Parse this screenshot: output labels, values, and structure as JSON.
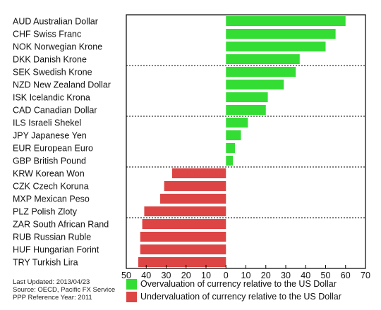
{
  "chart_data": {
    "type": "bar",
    "orientation": "horizontal",
    "categories": [
      "AUD Australian Dollar",
      "CHF Swiss Franc",
      "NOK Norwegian Krone",
      "DKK Danish Krone",
      "SEK Swedish Krone",
      "NZD New Zealand Dollar",
      "ISK Icelandic Krona",
      "CAD Canadian Dollar",
      "ILS Israeli Shekel",
      "JPY Japanese Yen",
      "EUR European Euro",
      "GBP British Pound",
      "KRW Korean Won",
      "CZK Czech Koruna",
      "MXP Mexican Peso",
      "PLZ Polish Zloty",
      "ZAR South African Rand",
      "RUB Russian Ruble",
      "HUF Hungarian Forint",
      "TRY Turkish Lira"
    ],
    "values": [
      60,
      55,
      50,
      37,
      35,
      29,
      21,
      20,
      11,
      7.5,
      4.5,
      3.5,
      -27,
      -31,
      -33,
      -41,
      -42,
      -43,
      -43,
      -44
    ],
    "xlim": [
      -50,
      70
    ],
    "x_ticks": [
      -50,
      -40,
      -30,
      -20,
      -10,
      0,
      10,
      20,
      30,
      40,
      50,
      60,
      70
    ],
    "x_tick_labels": [
      "50",
      "40",
      "30",
      "20",
      "10",
      "0",
      "10",
      "20",
      "30",
      "40",
      "50",
      "60",
      "70"
    ],
    "group_separators_after": [
      3,
      7,
      11,
      15
    ],
    "legend": [
      {
        "label": "Overvaluation of currency relative to the US Dollar",
        "color": "#33dd33"
      },
      {
        "label": "Undervaluation of currency relative to the US Dollar",
        "color": "#dd4444"
      }
    ],
    "colors": {
      "positive": "#33dd33",
      "negative": "#dd4444"
    },
    "title": "",
    "xlabel": "",
    "ylabel": ""
  },
  "meta": {
    "updated": "Last Updated: 2013/04/23",
    "source": "Source: OECD, Pacific FX Service",
    "reference_year": "PPP Reference Year: 2011"
  }
}
